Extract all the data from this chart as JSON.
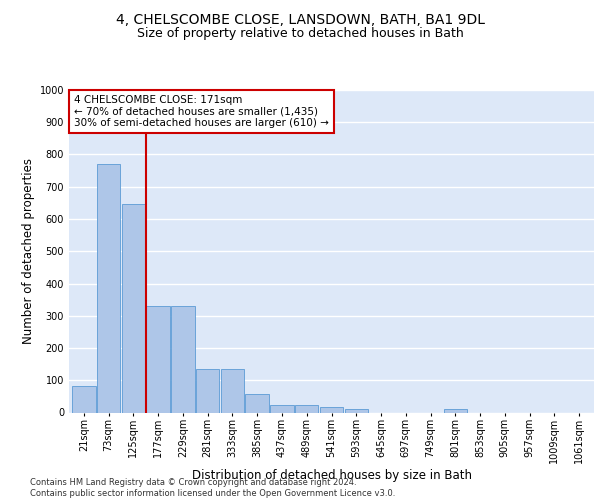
{
  "title_line1": "4, CHELSCOMBE CLOSE, LANSDOWN, BATH, BA1 9DL",
  "title_line2": "Size of property relative to detached houses in Bath",
  "xlabel": "Distribution of detached houses by size in Bath",
  "ylabel": "Number of detached properties",
  "bar_labels": [
    "21sqm",
    "73sqm",
    "125sqm",
    "177sqm",
    "229sqm",
    "281sqm",
    "333sqm",
    "385sqm",
    "437sqm",
    "489sqm",
    "541sqm",
    "593sqm",
    "645sqm",
    "697sqm",
    "749sqm",
    "801sqm",
    "853sqm",
    "905sqm",
    "957sqm",
    "1009sqm",
    "1061sqm"
  ],
  "bar_values": [
    83,
    770,
    645,
    330,
    330,
    135,
    135,
    58,
    22,
    22,
    17,
    12,
    0,
    0,
    0,
    12,
    0,
    0,
    0,
    0,
    0
  ],
  "bar_color": "#aec6e8",
  "bar_edge_color": "#5b9bd5",
  "property_line_x": 2.5,
  "annotation_text": "4 CHELSCOMBE CLOSE: 171sqm\n← 70% of detached houses are smaller (1,435)\n30% of semi-detached houses are larger (610) →",
  "annotation_box_color": "#ffffff",
  "annotation_box_edge": "#cc0000",
  "line_color": "#cc0000",
  "footnote": "Contains HM Land Registry data © Crown copyright and database right 2024.\nContains public sector information licensed under the Open Government Licence v3.0.",
  "ylim": [
    0,
    1000
  ],
  "yticks": [
    0,
    100,
    200,
    300,
    400,
    500,
    600,
    700,
    800,
    900,
    1000
  ],
  "background_color": "#dde8f8",
  "grid_color": "#ffffff",
  "title_fontsize": 10,
  "subtitle_fontsize": 9,
  "axis_label_fontsize": 8.5,
  "tick_fontsize": 7,
  "footnote_fontsize": 6
}
